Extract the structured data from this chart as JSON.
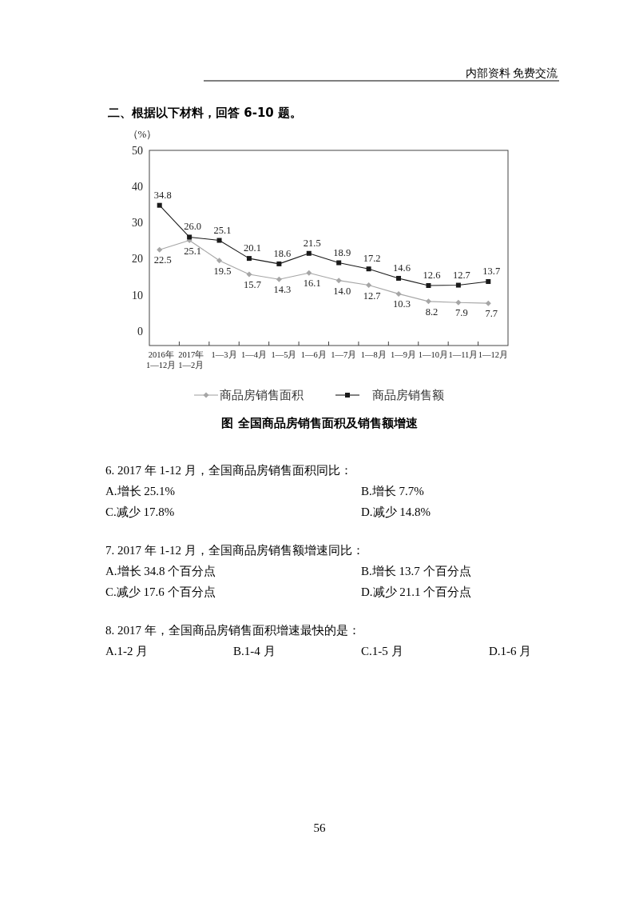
{
  "chart_data": {
    "type": "line",
    "title": "图  全国商品房销售面积及销售额增速",
    "ylabel": "（%）",
    "categories": [
      "2016年\n1—12月",
      "2017年\n1—2月",
      "1—3月",
      "1—4月",
      "1—5月",
      "1—6月",
      "1—7月",
      "1—8月",
      "1—9月",
      "1—10月",
      "1—11月",
      "1—12月"
    ],
    "series": [
      {
        "name": "商品房销售面积",
        "color": "#a6a6a6",
        "marker": "diamond",
        "values": [
          22.5,
          25.1,
          19.5,
          15.7,
          14.3,
          16.1,
          14.0,
          12.7,
          10.3,
          8.2,
          7.9,
          7.7
        ],
        "value_labels": [
          "22.5",
          "25.1",
          "19.5",
          "15.7",
          "14.3",
          "16.1",
          "14.0",
          "12.7",
          "10.3",
          "8.2",
          "7.9",
          "7.7"
        ]
      },
      {
        "name": "商品房销售额",
        "color": "#1a1a1a",
        "marker": "square",
        "values": [
          34.8,
          26.0,
          25.1,
          20.1,
          18.6,
          21.5,
          18.9,
          17.2,
          14.6,
          12.6,
          12.7,
          13.7
        ],
        "value_labels": [
          "34.8",
          "26.0",
          "25.1",
          "20.1",
          "18.6",
          "21.5",
          "18.9",
          "17.2",
          "14.6",
          "12.6",
          "12.7",
          "13.7"
        ]
      }
    ],
    "ylim": [
      -4,
      50
    ],
    "yticks": [
      0,
      10,
      20,
      30,
      40,
      50
    ],
    "legend": "bottom",
    "grid": false,
    "annotations": [
      "内部资料 免费交流",
      "二、根据以下材料，回答 6-10 题。",
      "6. 2017 年 1-12 月，全国商品房销售面积同比：",
      "A.增长 25.1%",
      "B.增长 7.7%",
      "C.减少 17.8%",
      "D.减少 14.8%",
      "7. 2017 年 1-12 月，全国商品房销售额增速同比：",
      "A.增长 34.8 个百分点",
      "B.增长 13.7 个百分点",
      "C.减少 17.6 个百分点",
      "D.减少 21.1 个百分点",
      "8. 2017 年，全国商品房销售面积增速最快的是：",
      "A.1-2 月",
      "B.1-4 月",
      "C.1-5 月",
      "D.1-6 月",
      "56"
    ]
  }
}
